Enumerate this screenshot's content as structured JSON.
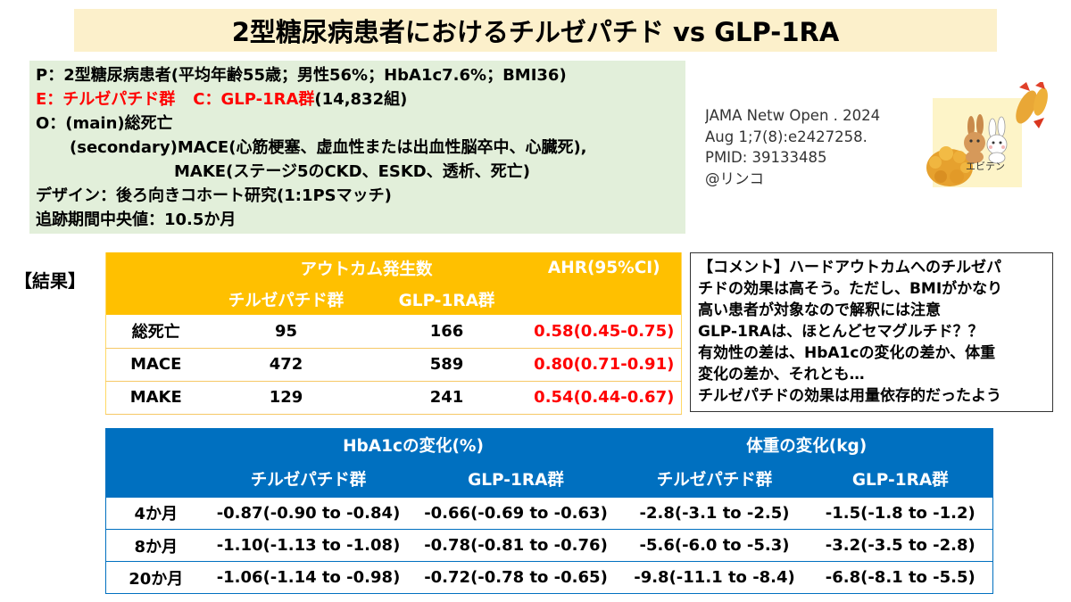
{
  "title": "2型糖尿病患者におけるチルゼパチド vs GLP-1RA",
  "pico": {
    "p": "P：2型糖尿病患者(平均年齢55歳；男性56%；HbA1c7.6%；BMI36)",
    "e": "E：チルゼパチド群",
    "c": "C：GLP-1RA群",
    "pairs": "(14,832組)",
    "o_main": "O：(main)総死亡",
    "o_secondary": "(secondary)MACE(心筋梗塞、虚血性または出血性脳卒中、心臓死),",
    "o_secondary_make": "MAKE(ステージ5のCKD、ESKD、透析、死亡)",
    "design": "デザイン：後ろ向きコホート研究(1:1PSマッチ)",
    "followup": "追跡期間中央値：10.5か月"
  },
  "reference": {
    "lines": [
      "JAMA Netw Open . 2024",
      "Aug 1;7(8):e2427258.",
      "PMID: 39133485",
      "@リンコ"
    ]
  },
  "logo": {
    "label": "エビテン"
  },
  "results_heading": "【結果】",
  "results_table": {
    "header_outcomes": "アウトカム発生数",
    "header_ahr": "AHR(95%CI)",
    "col_tirzepatide": "チルゼパチド群",
    "col_glp1ra": "GLP-1RA群",
    "rows": [
      {
        "label": "総死亡",
        "tirzepatide": "95",
        "glp1ra": "166",
        "ahr": "0.58(0.45-0.75)"
      },
      {
        "label": "MACE",
        "tirzepatide": "472",
        "glp1ra": "589",
        "ahr": "0.80(0.71-0.91)"
      },
      {
        "label": "MAKE",
        "tirzepatide": "129",
        "glp1ra": "241",
        "ahr": "0.54(0.44-0.67)"
      }
    ]
  },
  "comment": {
    "lines": [
      "【コメント】ハードアウトカムへのチルゼパ",
      "チドの効果は高そう。ただし、BMIがかなり",
      "高い患者が対象なので解釈には注意",
      "GLP-1RAは、ほとんどセマグルチド？？",
      "有効性の差は、HbA1cの変化の差か、体重",
      "変化の差か、それとも…",
      "チルゼパチドの効果は用量依存的だったよう"
    ]
  },
  "change_table": {
    "header_hba1c": "HbA1cの変化(%)",
    "header_weight": "体重の変化(kg)",
    "cols": [
      "チルゼパチド群",
      "GLP-1RA群",
      "チルゼパチド群",
      "GLP-1RA群"
    ],
    "rows": [
      {
        "label": "4か月",
        "values": [
          "-0.87(-0.90 to -0.84)",
          "-0.66(-0.69 to -0.63)",
          "-2.8(-3.1 to -2.5)",
          "-1.5(-1.8 to -1.2)"
        ]
      },
      {
        "label": "8か月",
        "values": [
          "-1.10(-1.13 to -1.08)",
          "-0.78(-0.81 to -0.76)",
          "-5.6(-6.0 to -5.3)",
          "-3.2(-3.5 to -2.8)"
        ]
      },
      {
        "label": "20か月",
        "values": [
          "-1.06(-1.14 to -0.98)",
          "-0.72(-0.78 to -0.65)",
          "-9.8(-11.1 to -8.4)",
          "-6.8(-8.1 to -5.5)"
        ]
      }
    ]
  },
  "colors": {
    "title_bg": "#fcf0cb",
    "pico_bg": "#e2efda",
    "results_header": "#ffc000",
    "change_header": "#0070c0",
    "highlight_red": "#ff0000"
  }
}
